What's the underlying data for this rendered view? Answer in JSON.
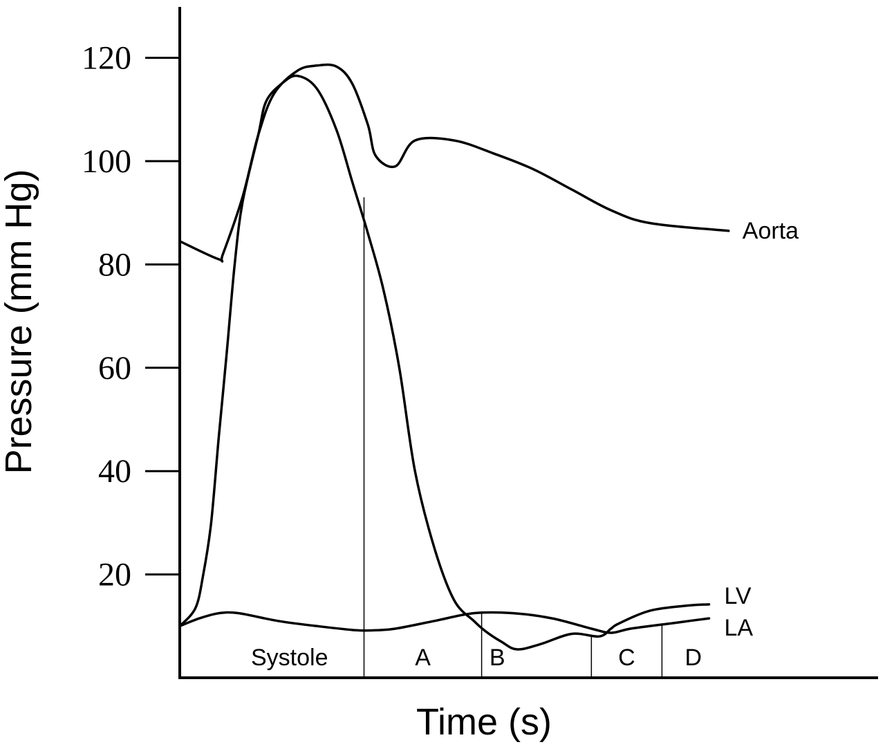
{
  "chart_data": {
    "type": "line",
    "title": "",
    "xlabel": "Time (s)",
    "ylabel": "Pressure (mm Hg)",
    "ylim": [
      0,
      130
    ],
    "xlim": [
      0,
      1.35
    ],
    "yticks": [
      20,
      40,
      60,
      80,
      100,
      120
    ],
    "grid": false,
    "legend": "none",
    "series": [
      {
        "name": "Aorta",
        "x": [
          0,
          0.1,
          0.11,
          0.16,
          0.2,
          0.24,
          0.3,
          0.35,
          0.4,
          0.44,
          0.48,
          0.5,
          0.55,
          0.6,
          0.7,
          0.8,
          0.9,
          1.0,
          1.1,
          1.2,
          1.4
        ],
        "y": [
          84.5,
          81,
          82,
          93,
          105,
          113,
          117.5,
          118.5,
          118.3,
          115,
          107,
          101,
          99,
          104,
          104,
          101.5,
          98.5,
          94.5,
          90.5,
          88,
          86.5
        ]
      },
      {
        "name": "LV",
        "x": [
          0,
          0.04,
          0.06,
          0.08,
          0.1,
          0.12,
          0.14,
          0.16,
          0.2,
          0.22,
          0.26,
          0.3,
          0.35,
          0.4,
          0.44,
          0.48,
          0.52,
          0.56,
          0.6,
          0.65,
          0.7,
          0.75,
          0.78,
          0.82,
          0.86,
          0.92,
          1.0,
          1.07,
          1.1,
          1.12,
          1.2,
          1.3,
          1.35
        ],
        "y": [
          10,
          13.5,
          20,
          30,
          47,
          63,
          80,
          92,
          105,
          111.5,
          115,
          116.5,
          114,
          106,
          96,
          86,
          75,
          60,
          40,
          25,
          15,
          11,
          9,
          7,
          5.5,
          6.5,
          8.5,
          8,
          9.5,
          10.5,
          13,
          14,
          14.2
        ]
      },
      {
        "name": "LA",
        "x": [
          0,
          0.05,
          0.1,
          0.15,
          0.25,
          0.35,
          0.45,
          0.5,
          0.55,
          0.65,
          0.75,
          0.85,
          0.95,
          1.05,
          1.1,
          1.15,
          1.25,
          1.3,
          1.35
        ],
        "y": [
          10,
          11.5,
          12.5,
          12.5,
          11,
          10,
          9.2,
          9.2,
          9.5,
          11,
          12.5,
          12.5,
          11.5,
          9.5,
          8.7,
          9.5,
          10.5,
          11,
          11.5
        ]
      }
    ],
    "phase_boundaries": [
      0.47,
      0.77,
      1.05,
      1.23
    ],
    "phases": [
      {
        "label": "Systole",
        "center": 0.28
      },
      {
        "label": "A",
        "center": 0.62
      },
      {
        "label": "B",
        "center": 0.81
      },
      {
        "label": "C",
        "center": 1.14
      },
      {
        "label": "D",
        "center": 1.31
      }
    ]
  }
}
